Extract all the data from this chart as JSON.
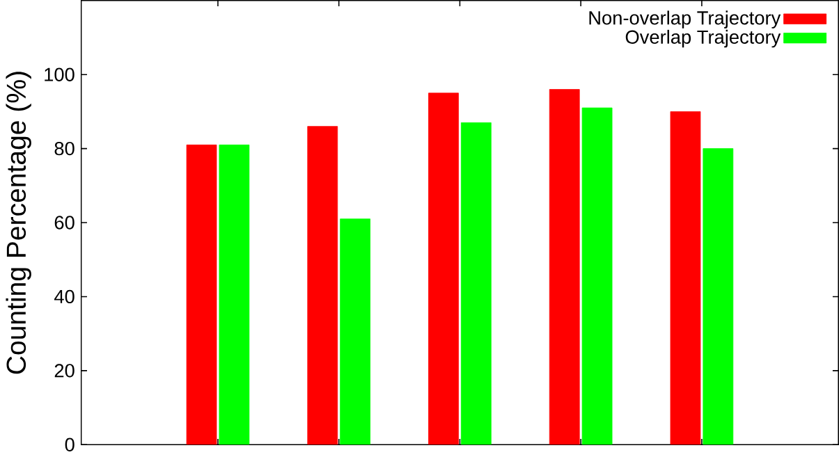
{
  "chart_data": {
    "type": "bar",
    "ylabel": "Counting Percentage (%)",
    "categories": [
      null,
      null,
      null,
      null,
      null
    ],
    "series": [
      {
        "name": "Non-overlap Trajectory",
        "color": "#ff0000",
        "values": [
          81,
          86,
          95,
          96,
          90
        ]
      },
      {
        "name": "Overlap Trajectory",
        "color": "#00ff00",
        "values": [
          81,
          61,
          87,
          91,
          80
        ]
      }
    ],
    "ylim": [
      0,
      120
    ],
    "yticks": [
      {
        "value": 0,
        "label": "0"
      },
      {
        "value": 20,
        "label": "20"
      },
      {
        "value": 40,
        "label": "40"
      },
      {
        "value": 60,
        "label": "60"
      },
      {
        "value": 80,
        "label": "80"
      },
      {
        "value": 100,
        "label": "100"
      }
    ],
    "grid": false,
    "legend": "top right"
  }
}
